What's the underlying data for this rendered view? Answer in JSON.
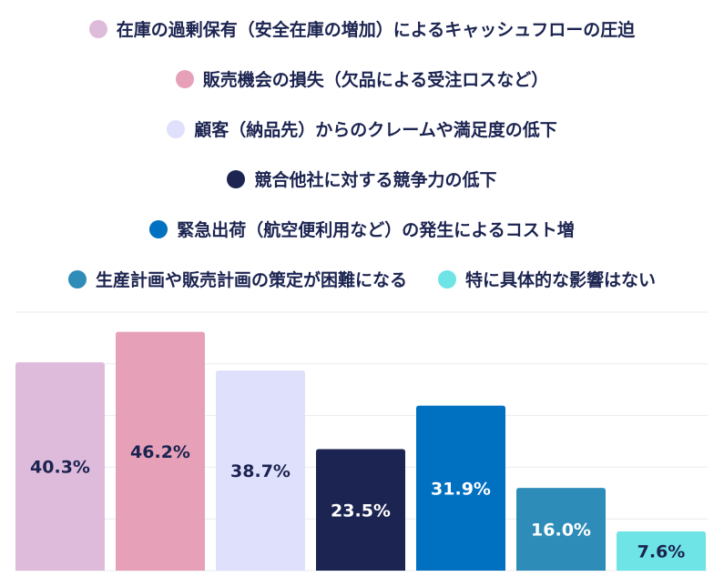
{
  "chart_data": {
    "type": "bar",
    "legend_position": "top",
    "grid": true,
    "ylim": [
      0,
      50
    ],
    "series": [
      {
        "name": "在庫の過剰保有（安全在庫の増加）によるキャッシュフローの圧迫",
        "value": 40.3,
        "label": "40.3%",
        "color": "#dfbbdb",
        "label_color": "#1b2350"
      },
      {
        "name": "販売機会の損失（欠品による受注ロスなど）",
        "value": 46.2,
        "label": "46.2%",
        "color": "#e6a0b8",
        "label_color": "#1b2350"
      },
      {
        "name": "顧客（納品先）からのクレームや満足度の低下",
        "value": 38.7,
        "label": "38.7%",
        "color": "#dfe0fb",
        "label_color": "#1b2350"
      },
      {
        "name": "競合他社に対する競争力の低下",
        "value": 23.5,
        "label": "23.5%",
        "color": "#1c2451",
        "label_color": "#ffffff"
      },
      {
        "name": "緊急出荷（航空便利用など）の発生によるコスト増",
        "value": 31.9,
        "label": "31.9%",
        "color": "#0070c0",
        "label_color": "#ffffff"
      },
      {
        "name": "生産計画や販売計画の策定が困難になる",
        "value": 16.0,
        "label": "16.0%",
        "color": "#2e8cb8",
        "label_color": "#ffffff"
      },
      {
        "name": "特に具体的な影響はない",
        "value": 7.6,
        "label": "7.6%",
        "color": "#6ee4e6",
        "label_color": "#1b2350"
      }
    ]
  }
}
